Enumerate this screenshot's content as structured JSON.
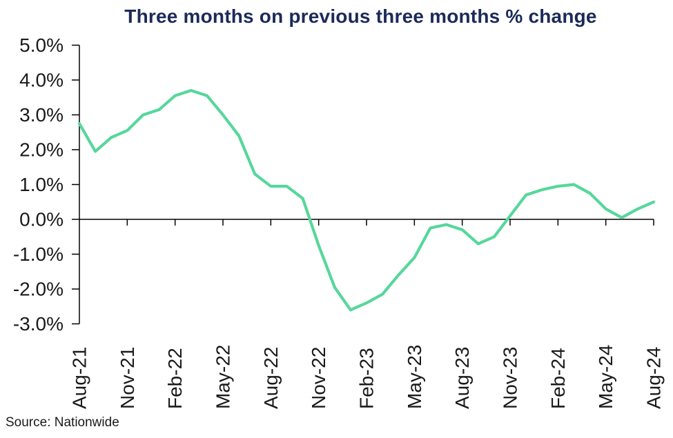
{
  "page": {
    "title": "Three months on previous three months % change",
    "source": "Source: Nationwide"
  },
  "chart_data": {
    "type": "line",
    "title": "Three months on previous three months % change",
    "x": [
      "Aug-21",
      "Sep-21",
      "Oct-21",
      "Nov-21",
      "Dec-21",
      "Jan-22",
      "Feb-22",
      "Mar-22",
      "Apr-22",
      "May-22",
      "Jun-22",
      "Jul-22",
      "Aug-22",
      "Sep-22",
      "Oct-22",
      "Nov-22",
      "Dec-22",
      "Jan-23",
      "Feb-23",
      "Mar-23",
      "Apr-23",
      "May-23",
      "Jun-23",
      "Jul-23",
      "Aug-23",
      "Sep-23",
      "Oct-23",
      "Nov-23",
      "Dec-23",
      "Jan-24",
      "Feb-24",
      "Mar-24",
      "Apr-24",
      "May-24",
      "Jun-24",
      "Jul-24",
      "Aug-24"
    ],
    "values": [
      2.75,
      1.95,
      2.35,
      2.55,
      3.0,
      3.15,
      3.55,
      3.7,
      3.55,
      3.0,
      2.4,
      1.3,
      0.95,
      0.95,
      0.6,
      -0.75,
      -1.95,
      -2.6,
      -2.4,
      -2.15,
      -1.6,
      -1.1,
      -0.25,
      -0.15,
      -0.3,
      -0.7,
      -0.5,
      0.1,
      0.7,
      0.85,
      0.95,
      1.0,
      0.75,
      0.3,
      0.05,
      0.3,
      0.5
    ],
    "xtick_every": 3,
    "xtick_labels": [
      "Aug-21",
      "Nov-21",
      "Feb-22",
      "May-22",
      "Aug-22",
      "Nov-22",
      "Feb-23",
      "May-23",
      "Aug-23",
      "Nov-23",
      "Feb-24",
      "May-24",
      "Aug-24"
    ],
    "ytick_labels": [
      "5.0%",
      "4.0%",
      "3.0%",
      "2.0%",
      "1.0%",
      "0.0%",
      "-1.0%",
      "-2.0%",
      "-3.0%"
    ],
    "ylim": [
      -3,
      5
    ],
    "xlabel": "",
    "ylabel": "",
    "grid": false,
    "legend": "none",
    "zero_baseline": true,
    "colors": {
      "line": "#56d79b",
      "title": "#1b2a58",
      "axis": "#000000",
      "tick_text": "#1a1a1a"
    }
  }
}
